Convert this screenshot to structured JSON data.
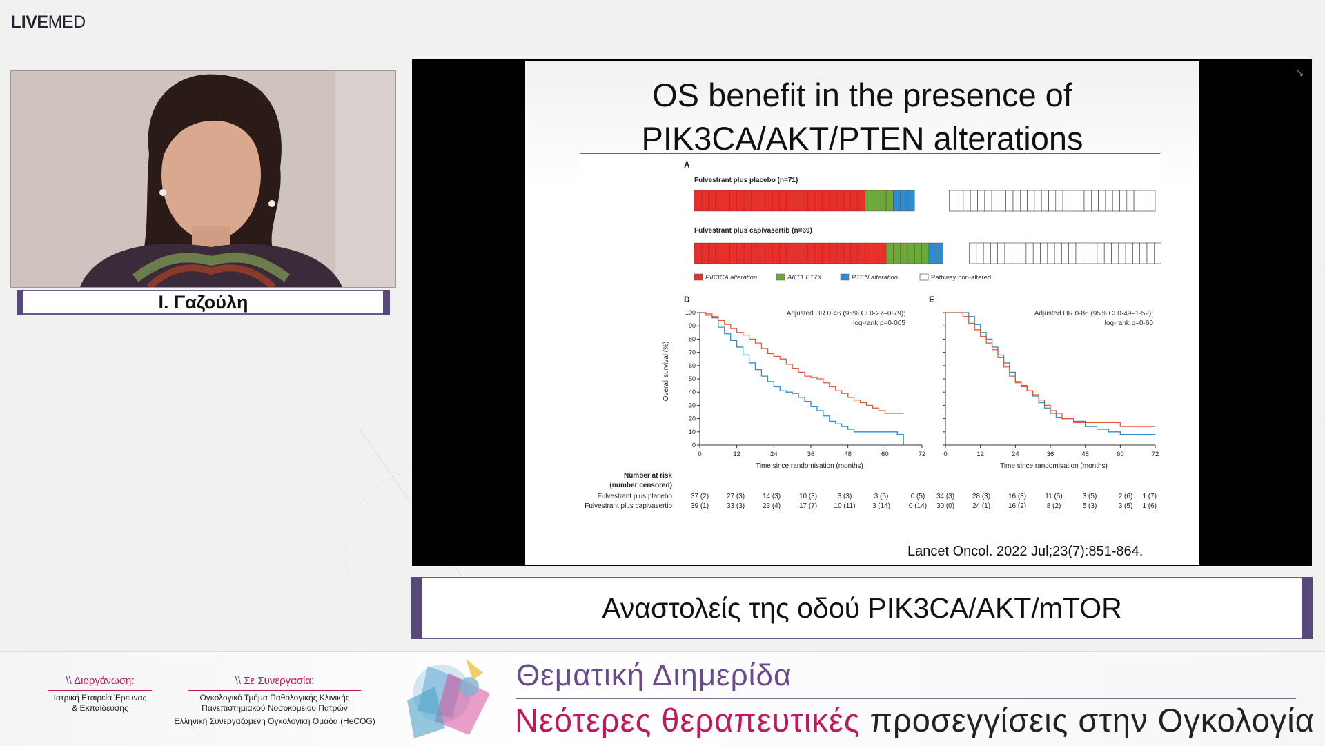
{
  "brand": {
    "logo_bold": "LIVE",
    "logo_light": "MED"
  },
  "speaker": {
    "name": "Ι. Γαζούλη"
  },
  "slide": {
    "title_line1": "OS benefit in the presence of",
    "title_line2": "PIK3CA/AKT/PTEN alterations",
    "citation": "Lancet Oncol. 2022 Jul;23(7):851-864.",
    "panel_a": {
      "label": "A",
      "group1_title": "Fulvestrant plus placebo (n=71)",
      "group2_title": "Fulvestrant plus capivasertib (n=69)",
      "legend": [
        "PIK3CA alteration",
        "AKT1 E17K",
        "PTEN alteration",
        "Pathway non-altered"
      ],
      "colors": {
        "pik3ca": "#e8302a",
        "akt1": "#6aaa3a",
        "pten": "#2a8fd0",
        "none": "#ffffff"
      },
      "group1": {
        "pik3ca": 24,
        "akt1": 4,
        "pten": 3,
        "none": 29
      },
      "group2": {
        "pik3ca": 27,
        "akt1": 6,
        "pten": 2,
        "none": 28
      }
    },
    "panel_d": {
      "label": "D",
      "annotation_line1": "Adjusted HR 0·46 (95% CI 0·27–0·79);",
      "annotation_line2": "log-rank p=0·005"
    },
    "panel_e": {
      "label": "E",
      "annotation_line1": "Adjusted HR 0·86 (95% CI 0·49–1·52);",
      "annotation_line2": "log-rank p=0·60"
    },
    "risk_table": {
      "header_line1": "Number at risk",
      "header_line2": "(number censored)",
      "row_labels": [
        "Fulvestrant plus placebo",
        "Fulvestrant plus capivasertib"
      ],
      "d_placebo": [
        "37 (2)",
        "27 (3)",
        "14 (3)",
        "10 (3)",
        "3 (3)",
        "3 (5)",
        "0 (5)"
      ],
      "d_capi": [
        "39 (1)",
        "33 (3)",
        "23 (4)",
        "17 (7)",
        "10 (11)",
        "3 (14)",
        "0 (14)"
      ],
      "e_placebo": [
        "34 (3)",
        "28 (3)",
        "16 (3)",
        "11 (5)",
        "3 (5)",
        "2 (6)",
        "1 (7)"
      ],
      "e_capi": [
        "30 (0)",
        "24 (1)",
        "16 (2)",
        "8 (2)",
        "5 (3)",
        "3 (5)",
        "1 (6)"
      ]
    }
  },
  "chart_data": [
    {
      "type": "line",
      "title": "D",
      "xlabel": "Time since randomisation (months)",
      "ylabel": "Overall survival (%)",
      "xlim": [
        0,
        72
      ],
      "ylim": [
        0,
        100
      ],
      "xticks": [
        0,
        12,
        24,
        36,
        48,
        60,
        72
      ],
      "yticks": [
        0,
        10,
        20,
        30,
        40,
        50,
        60,
        70,
        80,
        90,
        100
      ],
      "series": [
        {
          "name": "Fulvestrant plus placebo",
          "color": "#2a8fd0",
          "x": [
            0,
            2,
            4,
            6,
            8,
            10,
            12,
            14,
            16,
            18,
            20,
            22,
            24,
            26,
            28,
            30,
            32,
            34,
            36,
            38,
            40,
            42,
            44,
            46,
            48,
            50,
            54,
            58,
            62,
            64,
            66
          ],
          "y": [
            100,
            98,
            96,
            89,
            84,
            79,
            74,
            68,
            62,
            57,
            52,
            48,
            44,
            41,
            40,
            39,
            36,
            33,
            29,
            26,
            22,
            18,
            16,
            14,
            12,
            10,
            10,
            10,
            10,
            8,
            0
          ]
        },
        {
          "name": "Fulvestrant plus capivasertib",
          "color": "#e05a3a",
          "x": [
            0,
            2,
            4,
            6,
            8,
            10,
            12,
            14,
            16,
            18,
            20,
            22,
            24,
            26,
            28,
            30,
            32,
            34,
            36,
            38,
            40,
            42,
            44,
            46,
            48,
            50,
            52,
            54,
            56,
            58,
            60,
            66
          ],
          "y": [
            100,
            99,
            97,
            94,
            91,
            88,
            85,
            83,
            80,
            77,
            73,
            69,
            67,
            65,
            61,
            58,
            55,
            52,
            51,
            50,
            47,
            44,
            41,
            39,
            36,
            34,
            32,
            30,
            28,
            26,
            24,
            24
          ]
        }
      ]
    },
    {
      "type": "line",
      "title": "E",
      "xlabel": "Time since randomisation (months)",
      "ylabel": "",
      "xlim": [
        0,
        72
      ],
      "ylim": [
        0,
        100
      ],
      "xticks": [
        0,
        12,
        24,
        36,
        48,
        60,
        72
      ],
      "yticks": [
        0,
        10,
        20,
        30,
        40,
        50,
        60,
        70,
        80,
        90,
        100
      ],
      "series": [
        {
          "name": "Fulvestrant plus placebo",
          "color": "#2a8fd0",
          "x": [
            0,
            4,
            8,
            10,
            12,
            14,
            16,
            18,
            20,
            22,
            24,
            26,
            28,
            30,
            32,
            34,
            36,
            38,
            40,
            44,
            48,
            52,
            56,
            60,
            66,
            72
          ],
          "y": [
            100,
            100,
            97,
            91,
            85,
            80,
            74,
            68,
            62,
            55,
            48,
            45,
            41,
            37,
            32,
            28,
            24,
            21,
            20,
            18,
            14,
            12,
            10,
            8,
            8,
            8
          ]
        },
        {
          "name": "Fulvestrant plus capivasertib",
          "color": "#e05a3a",
          "x": [
            0,
            4,
            6,
            8,
            10,
            12,
            14,
            16,
            18,
            20,
            22,
            24,
            26,
            28,
            30,
            32,
            34,
            36,
            38,
            40,
            44,
            48,
            52,
            56,
            60,
            66,
            72
          ],
          "y": [
            100,
            100,
            97,
            92,
            87,
            82,
            77,
            72,
            66,
            59,
            52,
            47,
            44,
            41,
            38,
            34,
            30,
            26,
            24,
            20,
            17,
            17,
            17,
            17,
            14,
            14,
            14
          ]
        }
      ]
    }
  ],
  "caption": {
    "text": "Αναστολείς της οδού PIK3CA/AKT/mTOR"
  },
  "footer": {
    "organizer_label": "Διοργάνωση:",
    "organizer_line1": "Ιατρική Εταιρεία Έρευνας",
    "organizer_line2": "& Εκπαίδευσης",
    "partner_label": "Σε Συνεργασία:",
    "partner_line1": "Ογκολογικό Τμήμα Παθολογικής Κλινικής",
    "partner_line2": "Πανεπιστημιακού Νοσοκομείου Πατρών",
    "partner_line3": "Ελληνική Συνεργαζόμενη Ογκολογική Ομάδα (HeCOG)",
    "event_line1": "Θεματική Διημερίδα",
    "event_line2_highlight": "Νεότερες θεραπευτικές",
    "event_line2_rest": "προσεγγίσεις στην Ογκολογία"
  }
}
